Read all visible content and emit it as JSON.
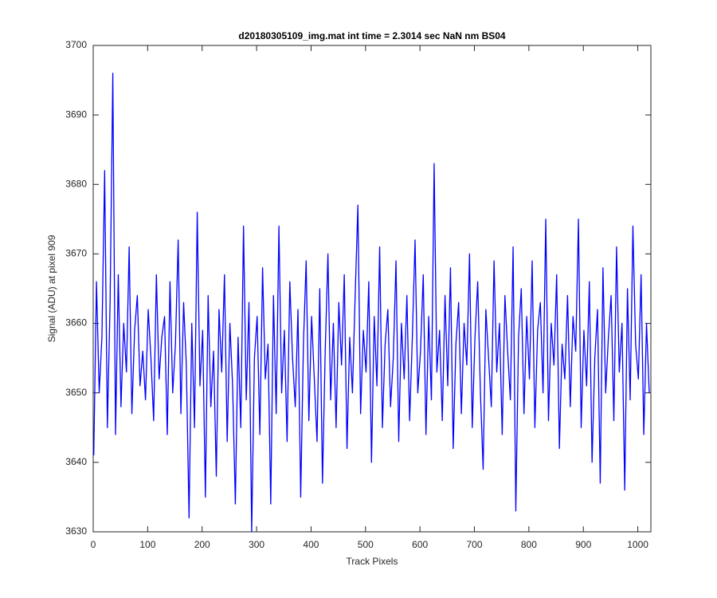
{
  "chart_data": {
    "type": "line",
    "title": "d20180305109_img.mat int time = 2.3014 sec  NaN nm BS04",
    "x_label": "Track Pixels",
    "y_label": "Signal (ADU) at pixel 909",
    "xlim": [
      0,
      1024
    ],
    "ylim": [
      3630,
      3700
    ],
    "xticks": [
      0,
      100,
      200,
      300,
      400,
      500,
      600,
      700,
      800,
      900,
      1000
    ],
    "yticks": [
      3630,
      3640,
      3650,
      3660,
      3670,
      3680,
      3690,
      3700
    ],
    "grid": false,
    "x": [
      1,
      6,
      11,
      16,
      21,
      26,
      31,
      36,
      41,
      46,
      51,
      56,
      61,
      66,
      71,
      76,
      81,
      86,
      91,
      96,
      101,
      106,
      111,
      116,
      121,
      126,
      131,
      136,
      141,
      146,
      151,
      156,
      161,
      166,
      171,
      176,
      181,
      186,
      191,
      196,
      201,
      206,
      211,
      216,
      221,
      226,
      231,
      236,
      241,
      246,
      251,
      256,
      261,
      266,
      271,
      276,
      281,
      286,
      291,
      296,
      301,
      306,
      311,
      316,
      321,
      326,
      331,
      336,
      341,
      346,
      351,
      356,
      361,
      366,
      371,
      376,
      381,
      386,
      391,
      396,
      401,
      406,
      411,
      416,
      421,
      426,
      431,
      436,
      441,
      446,
      451,
      456,
      461,
      466,
      471,
      476,
      481,
      486,
      491,
      496,
      501,
      506,
      511,
      516,
      521,
      526,
      531,
      536,
      541,
      546,
      551,
      556,
      561,
      566,
      571,
      576,
      581,
      586,
      591,
      596,
      601,
      606,
      611,
      616,
      621,
      626,
      631,
      636,
      641,
      646,
      651,
      656,
      661,
      666,
      671,
      676,
      681,
      686,
      691,
      696,
      701,
      706,
      711,
      716,
      721,
      726,
      731,
      736,
      741,
      746,
      751,
      756,
      761,
      766,
      771,
      776,
      781,
      786,
      791,
      796,
      801,
      806,
      811,
      816,
      821,
      826,
      831,
      836,
      841,
      846,
      851,
      856,
      861,
      866,
      871,
      876,
      881,
      886,
      891,
      896,
      901,
      906,
      911,
      916,
      921,
      926,
      931,
      936,
      941,
      946,
      951,
      956,
      961,
      966,
      971,
      976,
      981,
      986,
      991,
      996,
      1001,
      1006,
      1011,
      1016,
      1021
    ],
    "series": [
      {
        "name": "signal",
        "color": "#0000ff",
        "values": [
          3641,
          3666,
          3650,
          3658,
          3682,
          3645,
          3663,
          3696,
          3644,
          3667,
          3648,
          3660,
          3653,
          3671,
          3647,
          3659,
          3664,
          3651,
          3656,
          3649,
          3662,
          3655,
          3646,
          3667,
          3652,
          3658,
          3661,
          3644,
          3666,
          3650,
          3657,
          3672,
          3647,
          3663,
          3654,
          3632,
          3660,
          3645,
          3676,
          3651,
          3659,
          3635,
          3664,
          3648,
          3656,
          3638,
          3662,
          3653,
          3667,
          3643,
          3660,
          3651,
          3634,
          3658,
          3645,
          3674,
          3649,
          3663,
          3630,
          3655,
          3661,
          3644,
          3668,
          3652,
          3657,
          3634,
          3664,
          3647,
          3674,
          3650,
          3659,
          3643,
          3666,
          3655,
          3648,
          3662,
          3635,
          3657,
          3669,
          3646,
          3661,
          3652,
          3643,
          3665,
          3637,
          3656,
          3670,
          3649,
          3660,
          3645,
          3663,
          3654,
          3667,
          3642,
          3658,
          3650,
          3664,
          3677,
          3647,
          3659,
          3653,
          3666,
          3640,
          3661,
          3651,
          3671,
          3645,
          3657,
          3662,
          3648,
          3655,
          3669,
          3643,
          3660,
          3652,
          3664,
          3646,
          3658,
          3672,
          3650,
          3656,
          3667,
          3644,
          3661,
          3649,
          3683,
          3653,
          3659,
          3646,
          3664,
          3651,
          3668,
          3642,
          3657,
          3663,
          3647,
          3660,
          3654,
          3670,
          3645,
          3658,
          3666,
          3650,
          3639,
          3662,
          3655,
          3648,
          3669,
          3653,
          3660,
          3644,
          3664,
          3656,
          3649,
          3671,
          3633,
          3658,
          3665,
          3647,
          3661,
          3652,
          3669,
          3645,
          3659,
          3663,
          3650,
          3675,
          3646,
          3660,
          3654,
          3667,
          3642,
          3657,
          3652,
          3664,
          3648,
          3661,
          3656,
          3675,
          3645,
          3659,
          3651,
          3666,
          3640,
          3655,
          3662,
          3637,
          3668,
          3650,
          3658,
          3664,
          3646,
          3671,
          3653,
          3660,
          3636,
          3665,
          3649,
          3674,
          3657,
          3652,
          3667,
          3644,
          3660,
          3650
        ]
      }
    ]
  }
}
